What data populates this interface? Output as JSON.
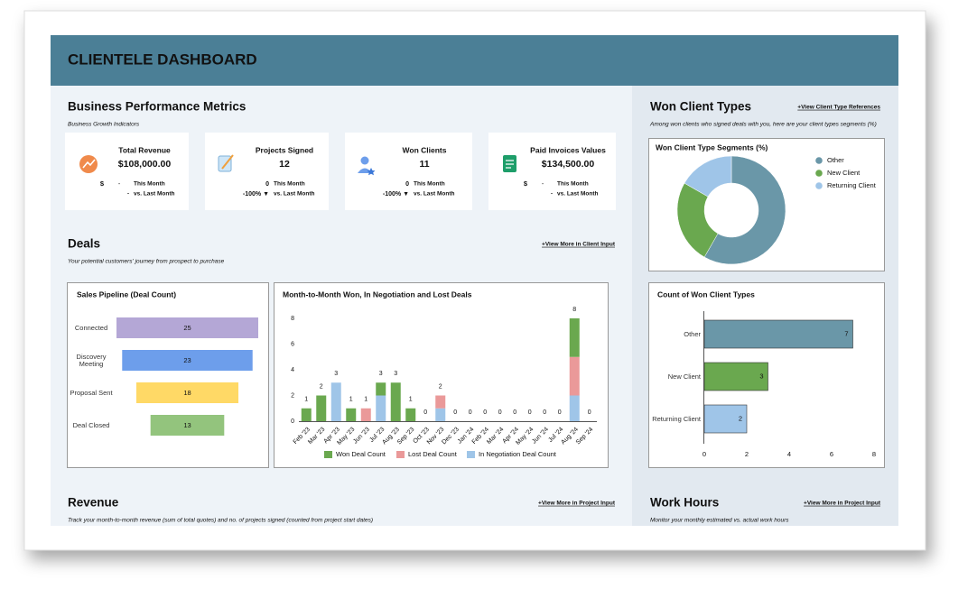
{
  "header": {
    "title": "CLIENTELE DASHBOARD"
  },
  "metrics_section": {
    "title": "Business Performance Metrics",
    "subtitle": "Business Growth Indicators",
    "cards": [
      {
        "label": "Total Revenue",
        "value": "$108,000.00",
        "current": "$",
        "current_change": "-",
        "current_label": "This Month",
        "change": "-",
        "change_label": "vs. Last Month"
      },
      {
        "label": "Projects Signed",
        "value": "12",
        "current": "0",
        "current_label": "This Month",
        "change": "-100% ▼",
        "change_label": "vs. Last Month"
      },
      {
        "label": "Won Clients",
        "value": "11",
        "current": "0",
        "current_label": "This Month",
        "change": "-100% ▼",
        "change_label": "vs. Last Month"
      },
      {
        "label": "Paid Invoices Values",
        "value": "$134,500.00",
        "current": "$",
        "current_change": "-",
        "current_label": "This Month",
        "change": "-",
        "change_label": "vs. Last Month"
      }
    ]
  },
  "deals_section": {
    "title": "Deals",
    "link": "+View More in Client Input",
    "subtitle": "Your potential customers' journey from prospect to purchase"
  },
  "client_types_section": {
    "title": "Won Client Types",
    "link": "+View Client Type References",
    "subtitle": "Among won clients who signed deals with you, here are your client types segments (%)"
  },
  "revenue_section": {
    "title": "Revenue",
    "link": "+View More in Project Input",
    "subtitle": "Track your month-to-month revenue (sum of total quotes) and no. of projects signed (counted from project start dates)"
  },
  "work_hours_section": {
    "title": "Work Hours",
    "link": "+View More in Project Input",
    "subtitle": "Monitor your monthly estimated vs. actual work hours"
  },
  "chart_data": [
    {
      "type": "funnel",
      "title": "Sales Pipeline (Deal Count)",
      "categories": [
        "Connected",
        "Discovery Meeting",
        "Proposal Sent",
        "Deal Closed"
      ],
      "values": [
        25,
        23,
        18,
        13
      ],
      "colors": [
        "#b4a7d6",
        "#6d9eeb",
        "#ffd966",
        "#93c47d"
      ]
    },
    {
      "type": "stacked_bar",
      "title": "Month-to-Month Won, In Negotiation and Lost Deals",
      "categories": [
        "Feb '23",
        "Mar '23",
        "Apr '23",
        "May '23",
        "Jun '23",
        "Jul '23",
        "Aug '23",
        "Sep '23",
        "Oct '23",
        "Nov '23",
        "Dec '23",
        "Jan '24",
        "Feb '24",
        "Mar '24",
        "Apr '24",
        "May '24",
        "Jun '24",
        "Jul '24",
        "Aug '24",
        "Sep '24"
      ],
      "series": [
        {
          "name": "Won Deal Count",
          "color": "#6aa84f",
          "values": [
            1,
            2,
            0,
            1,
            0,
            1,
            3,
            1,
            0,
            0,
            0,
            0,
            0,
            0,
            0,
            0,
            0,
            0,
            3,
            0
          ]
        },
        {
          "name": "Lost Deal Count",
          "color": "#ea9999",
          "values": [
            0,
            0,
            0,
            0,
            1,
            0,
            0,
            0,
            0,
            1,
            0,
            0,
            0,
            0,
            0,
            0,
            0,
            0,
            3,
            0
          ]
        },
        {
          "name": "In Negotiation Deal Count",
          "color": "#9fc5e8",
          "values": [
            0,
            0,
            3,
            0,
            0,
            2,
            0,
            0,
            0,
            1,
            0,
            0,
            0,
            0,
            0,
            0,
            0,
            0,
            2,
            0
          ]
        }
      ],
      "totals": [
        1,
        2,
        3,
        1,
        1,
        3,
        3,
        1,
        0,
        2,
        0,
        0,
        0,
        0,
        0,
        0,
        0,
        0,
        8,
        0
      ],
      "ylim": [
        0,
        8
      ],
      "yticks": [
        0,
        2,
        4,
        6,
        8
      ],
      "grid": false,
      "legend": "bottom"
    },
    {
      "type": "donut",
      "title": "Won Client Type Segments (%)",
      "categories": [
        "Other",
        "New Client",
        "Returning Client"
      ],
      "values": [
        58.3,
        25,
        16.7
      ],
      "colors": [
        "#6a97a8",
        "#6aa84f",
        "#9fc5e8"
      ],
      "legend": "right"
    },
    {
      "type": "bar",
      "orientation": "horizontal",
      "title": "Count of Won Client Types",
      "categories": [
        "Other",
        "New Client",
        "Returning Client"
      ],
      "values": [
        7,
        3,
        2
      ],
      "colors": [
        "#6a97a8",
        "#6aa84f",
        "#9fc5e8"
      ],
      "xlim": [
        0,
        8
      ],
      "xticks": [
        0,
        2,
        4,
        6,
        8
      ],
      "grid": false
    }
  ]
}
